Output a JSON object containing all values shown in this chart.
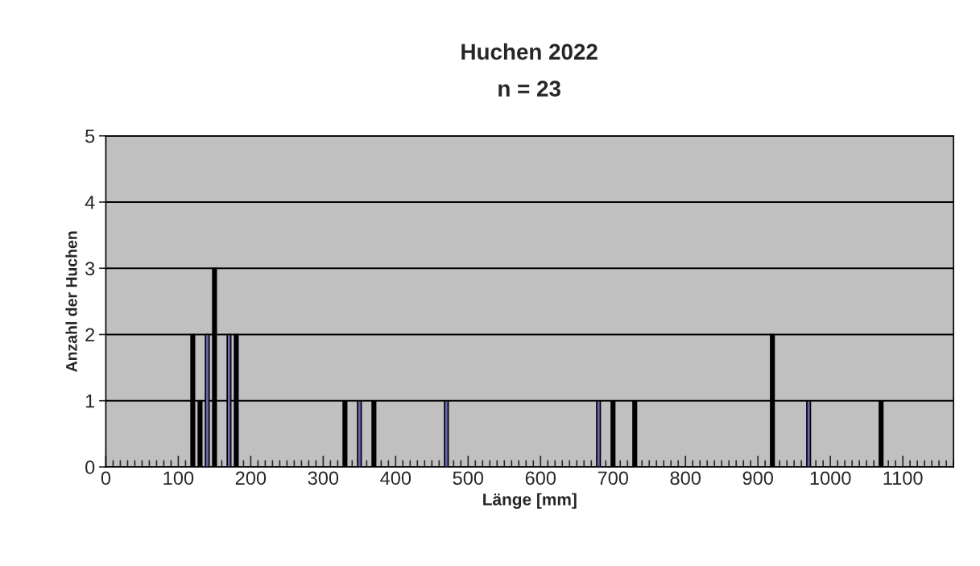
{
  "chart_data": {
    "type": "bar",
    "title": "Huchen 2022",
    "subtitle": "n = 23",
    "xlabel": "Länge [mm]",
    "ylabel": "Anzahl der Huchen",
    "x": [
      120,
      130,
      140,
      150,
      170,
      180,
      330,
      350,
      370,
      470,
      680,
      700,
      730,
      920,
      970,
      1070
    ],
    "values": [
      2,
      1,
      2,
      3,
      2,
      2,
      1,
      1,
      1,
      1,
      1,
      1,
      1,
      2,
      1,
      1
    ],
    "colors": [
      "#000000",
      "#000000",
      "#6666b3",
      "#000000",
      "#6666b3",
      "#000000",
      "#000000",
      "#6666b3",
      "#000000",
      "#6666b3",
      "#6666b3",
      "#000000",
      "#000000",
      "#000000",
      "#6666b3",
      "#000000"
    ],
    "xlim": [
      0,
      1170
    ],
    "xticks": [
      0,
      100,
      200,
      300,
      400,
      500,
      600,
      700,
      800,
      900,
      1000,
      1100
    ],
    "ylim": [
      0,
      5
    ],
    "yticks": [
      0,
      1,
      2,
      3,
      4,
      5
    ],
    "grid": "y",
    "legend": false
  }
}
